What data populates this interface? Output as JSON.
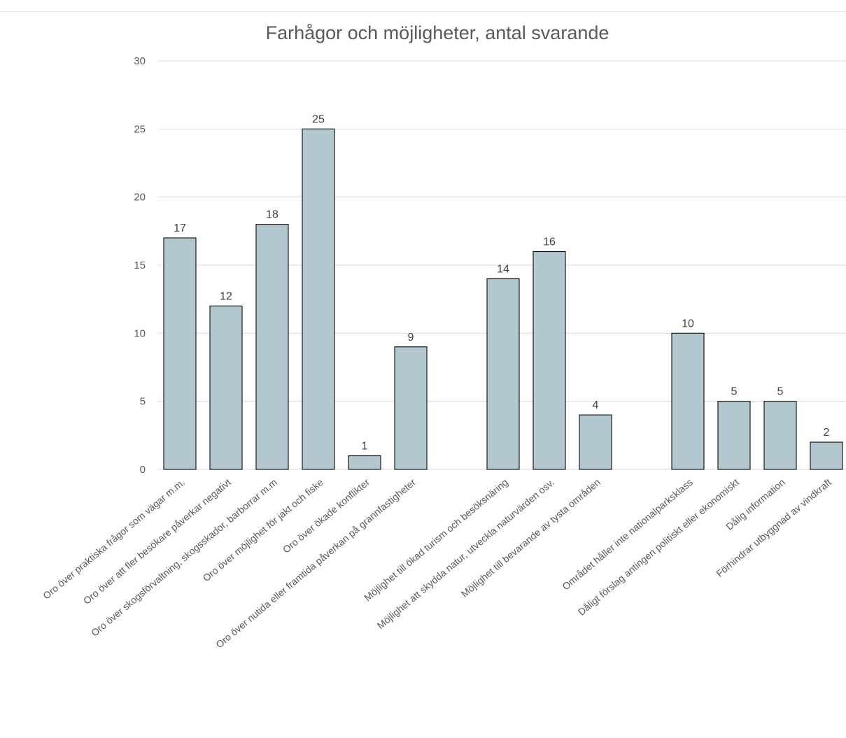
{
  "chart_data": {
    "type": "bar",
    "title": "Farhågor och möjligheter, antal svarande",
    "xlabel": "",
    "ylabel": "",
    "ylim": [
      0,
      30
    ],
    "yticks": [
      0,
      5,
      10,
      15,
      20,
      25,
      30
    ],
    "grid": true,
    "bar_color": "#b3c7d1",
    "categories": [
      "Oro över praktiska frågor som vägar m.m.",
      "Oro över att fler besökare påverkar negativt",
      "Oro över skogsförvaltning, skogsskador, barborrar m.m",
      "Oro över möjlighet för jakt och fiske",
      "Oro över ökade konflikter",
      "Oro över nutida eller framtida påverkan på grannfastigheter",
      "",
      "Möjlighet till ökad turism och besöksnäring",
      "Möjlighet att skydda natur, utveckla naturvärden osv.",
      "Möjlighet till bevarande av tysta områden",
      "",
      "Området håller inte nationalparksklass",
      "Dåligt förslag antingen politiskt eller ekonomiskt",
      "Dålig information",
      "Förhindrar utbyggnad av vindkraft"
    ],
    "values": [
      17,
      12,
      18,
      25,
      1,
      9,
      null,
      14,
      16,
      4,
      null,
      10,
      5,
      5,
      2
    ]
  }
}
